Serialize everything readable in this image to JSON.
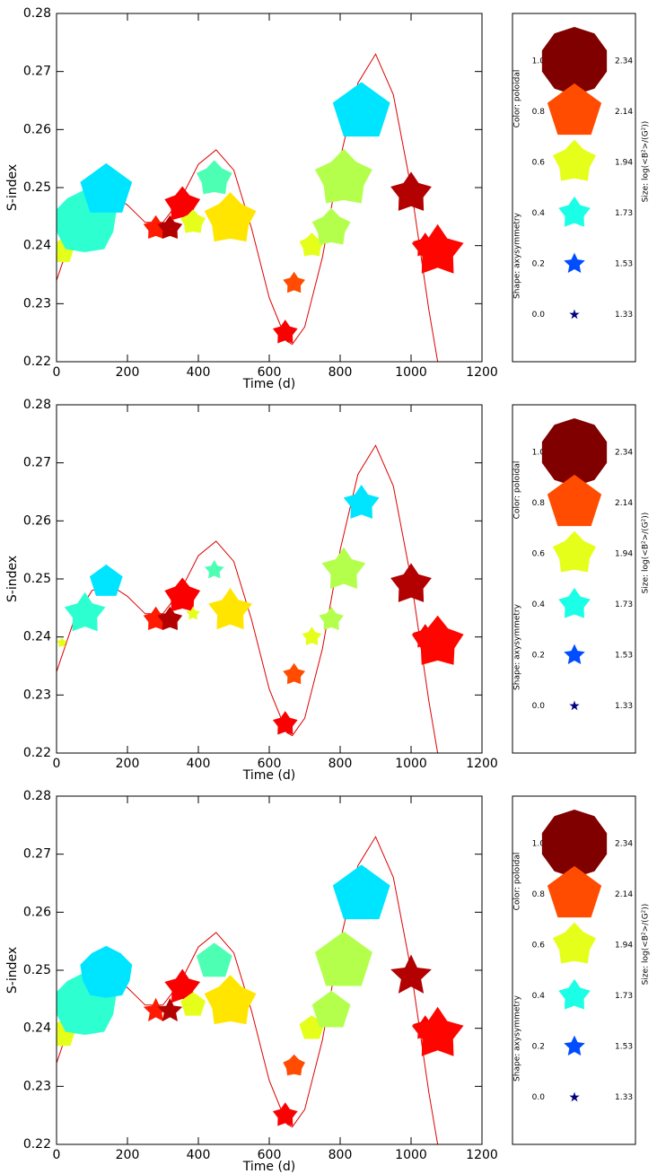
{
  "chart_data": [
    {
      "type": "scatter",
      "xlabel": "Time (d)",
      "ylabel": "S-index",
      "xlim": [
        0,
        1200
      ],
      "xticks": [
        0,
        200,
        400,
        600,
        800,
        1000,
        1200
      ],
      "ylim": [
        0.22,
        0.28
      ],
      "yticks": [
        0.22,
        0.23,
        0.24,
        0.25,
        0.26,
        0.27,
        0.28
      ],
      "colormap": "jet",
      "points": {
        "x": [
          15,
          80,
          140,
          280,
          320,
          355,
          385,
          445,
          490,
          645,
          670,
          720,
          775,
          810,
          860,
          1000,
          1040,
          1075
        ],
        "values": [
          0.239,
          0.244,
          0.2495,
          0.243,
          0.243,
          0.247,
          0.244,
          0.2515,
          0.2445,
          0.225,
          0.2335,
          0.24,
          0.243,
          0.2515,
          0.263,
          0.249,
          0.24,
          0.239
        ],
        "colors": [
          0.6,
          0.42,
          0.35,
          0.85,
          0.95,
          0.88,
          0.6,
          0.45,
          0.65,
          0.88,
          0.8,
          0.6,
          0.55,
          0.55,
          0.35,
          0.95,
          0.88,
          0.87
        ],
        "sizes": [
          1.6,
          2.3,
          2.1,
          1.6,
          1.6,
          1.8,
          1.6,
          1.8,
          2.1,
          1.6,
          1.55,
          1.6,
          1.85,
          2.2,
          2.2,
          1.9,
          1.6,
          2.1
        ],
        "shapes": [
          0.8,
          0.9,
          0.8,
          0.4,
          0.4,
          0.5,
          0.6,
          0.6,
          0.6,
          0.4,
          0.4,
          0.6,
          0.6,
          0.6,
          0.8,
          0.4,
          0.4,
          0.4
        ]
      },
      "fit": {
        "color": "#dd0000",
        "x": [
          0,
          50,
          100,
          150,
          200,
          250,
          300,
          350,
          400,
          450,
          500,
          550,
          600,
          650,
          665,
          700,
          750,
          800,
          850,
          900,
          950,
          1000,
          1050,
          1075
        ],
        "values": [
          0.234,
          0.243,
          0.248,
          0.249,
          0.247,
          0.244,
          0.244,
          0.248,
          0.254,
          0.2565,
          0.253,
          0.243,
          0.231,
          0.2235,
          0.223,
          0.226,
          0.238,
          0.255,
          0.268,
          0.273,
          0.266,
          0.25,
          0.229,
          0.22
        ]
      },
      "legend": {
        "color_title": "Color: poloidal",
        "shape_title": "Shape: axysymmetry",
        "size_title": "Size: log(<B²>/(G²))",
        "levels": [
          {
            "value": 1,
            "label": "1.0"
          },
          {
            "value": 0.8,
            "label": "0.8"
          },
          {
            "value": 0.6,
            "label": "0.6"
          },
          {
            "value": 0.4,
            "label": "0.4"
          },
          {
            "value": 0.2,
            "label": "0.2"
          },
          {
            "value": 0,
            "label": "0.0"
          }
        ],
        "sizes": [
          2.34,
          2.14,
          1.94,
          1.73,
          1.53,
          1.33
        ]
      }
    },
    {
      "type": "scatter",
      "xlabel": "Time (d)",
      "ylabel": "S-index",
      "xlim": [
        0,
        1200
      ],
      "xticks": [
        0,
        200,
        400,
        600,
        800,
        1000,
        1200
      ],
      "ylim": [
        0.22,
        0.28
      ],
      "yticks": [
        0.22,
        0.23,
        0.24,
        0.25,
        0.26,
        0.27,
        0.28
      ],
      "colormap": "jet",
      "points": {
        "x": [
          15,
          80,
          140,
          280,
          320,
          355,
          385,
          445,
          490,
          645,
          670,
          720,
          775,
          810,
          860,
          1000,
          1040,
          1075
        ],
        "values": [
          0.239,
          0.244,
          0.2495,
          0.243,
          0.243,
          0.247,
          0.244,
          0.2515,
          0.2445,
          0.225,
          0.2335,
          0.24,
          0.243,
          0.2515,
          0.263,
          0.249,
          0.24,
          0.239
        ],
        "colors": [
          0.6,
          0.42,
          0.35,
          0.85,
          0.95,
          0.88,
          0.6,
          0.45,
          0.65,
          0.88,
          0.8,
          0.6,
          0.55,
          0.55,
          0.35,
          0.95,
          0.88,
          0.87
        ],
        "sizes": [
          1.33,
          1.9,
          1.75,
          1.6,
          1.6,
          1.8,
          1.4,
          1.5,
          1.95,
          1.6,
          1.55,
          1.5,
          1.6,
          1.95,
          1.8,
          1.9,
          1.6,
          2.1
        ],
        "shapes": [
          0.4,
          0.4,
          0.8,
          0.4,
          0.4,
          0.5,
          0.3,
          0.3,
          0.4,
          0.4,
          0.4,
          0.4,
          0.4,
          0.4,
          0.4,
          0.4,
          0.4,
          0.5
        ]
      },
      "fit": {
        "color": "#dd0000",
        "x": [
          0,
          50,
          100,
          150,
          200,
          250,
          300,
          350,
          400,
          450,
          500,
          550,
          600,
          650,
          665,
          700,
          750,
          800,
          850,
          900,
          950,
          1000,
          1050,
          1075
        ],
        "values": [
          0.234,
          0.243,
          0.248,
          0.249,
          0.247,
          0.244,
          0.244,
          0.248,
          0.254,
          0.2565,
          0.253,
          0.243,
          0.231,
          0.2235,
          0.223,
          0.226,
          0.238,
          0.255,
          0.268,
          0.273,
          0.266,
          0.25,
          0.229,
          0.22
        ]
      },
      "legend": {
        "color_title": "Color: poloidal",
        "shape_title": "Shape: axysymmetry",
        "size_title": "Size: log(<B²>/(G²))",
        "levels": [
          {
            "value": 1,
            "label": "1.0"
          },
          {
            "value": 0.8,
            "label": "0.8"
          },
          {
            "value": 0.6,
            "label": "0.6"
          },
          {
            "value": 0.4,
            "label": "0.4"
          },
          {
            "value": 0.2,
            "label": "0.2"
          },
          {
            "value": 0,
            "label": "0.0"
          }
        ],
        "sizes": [
          2.34,
          2.14,
          1.94,
          1.73,
          1.53,
          1.33
        ]
      }
    },
    {
      "type": "scatter",
      "xlabel": "Time (d)",
      "ylabel": "S-index",
      "xlim": [
        0,
        1200
      ],
      "xticks": [
        0,
        200,
        400,
        600,
        800,
        1000,
        1200
      ],
      "ylim": [
        0.22,
        0.28
      ],
      "yticks": [
        0.22,
        0.23,
        0.24,
        0.25,
        0.26,
        0.27,
        0.28
      ],
      "colormap": "jet",
      "points": {
        "x": [
          15,
          80,
          140,
          280,
          320,
          355,
          385,
          445,
          490,
          645,
          670,
          720,
          775,
          810,
          860,
          1000,
          1040,
          1075
        ],
        "values": [
          0.239,
          0.244,
          0.2495,
          0.243,
          0.243,
          0.247,
          0.244,
          0.2515,
          0.2445,
          0.225,
          0.2335,
          0.24,
          0.243,
          0.2515,
          0.263,
          0.249,
          0.24,
          0.239
        ],
        "colors": [
          0.6,
          0.42,
          0.35,
          0.85,
          0.95,
          0.88,
          0.6,
          0.45,
          0.65,
          0.88,
          0.8,
          0.6,
          0.55,
          0.55,
          0.35,
          0.95,
          0.88,
          0.87
        ],
        "sizes": [
          1.65,
          2.3,
          2.1,
          1.6,
          1.6,
          1.8,
          1.6,
          1.8,
          2.1,
          1.6,
          1.55,
          1.6,
          1.85,
          2.2,
          2.2,
          1.9,
          1.6,
          2.1
        ],
        "shapes": [
          0.8,
          0.9,
          0.9,
          0.2,
          0.2,
          0.4,
          0.8,
          0.8,
          0.6,
          0.4,
          0.6,
          0.8,
          0.8,
          0.8,
          0.8,
          0.2,
          0.4,
          0.4
        ]
      },
      "fit": {
        "color": "#dd0000",
        "x": [
          0,
          50,
          100,
          150,
          200,
          250,
          300,
          350,
          400,
          450,
          500,
          550,
          600,
          650,
          665,
          700,
          750,
          800,
          850,
          900,
          950,
          1000,
          1050,
          1075
        ],
        "values": [
          0.234,
          0.243,
          0.248,
          0.249,
          0.247,
          0.244,
          0.244,
          0.248,
          0.254,
          0.2565,
          0.253,
          0.243,
          0.231,
          0.2235,
          0.223,
          0.226,
          0.238,
          0.255,
          0.268,
          0.273,
          0.266,
          0.25,
          0.229,
          0.22
        ]
      },
      "legend": {
        "color_title": "Color: poloidal",
        "shape_title": "Shape: axysymmetry",
        "size_title": "Size: log(<B²>/(G²))",
        "levels": [
          {
            "value": 1,
            "label": "1.0"
          },
          {
            "value": 0.8,
            "label": "0.8"
          },
          {
            "value": 0.6,
            "label": "0.6"
          },
          {
            "value": 0.4,
            "label": "0.4"
          },
          {
            "value": 0.2,
            "label": "0.2"
          },
          {
            "value": 0,
            "label": "0.0"
          }
        ],
        "sizes": [
          2.34,
          2.14,
          1.94,
          1.73,
          1.53,
          1.33
        ]
      }
    }
  ]
}
